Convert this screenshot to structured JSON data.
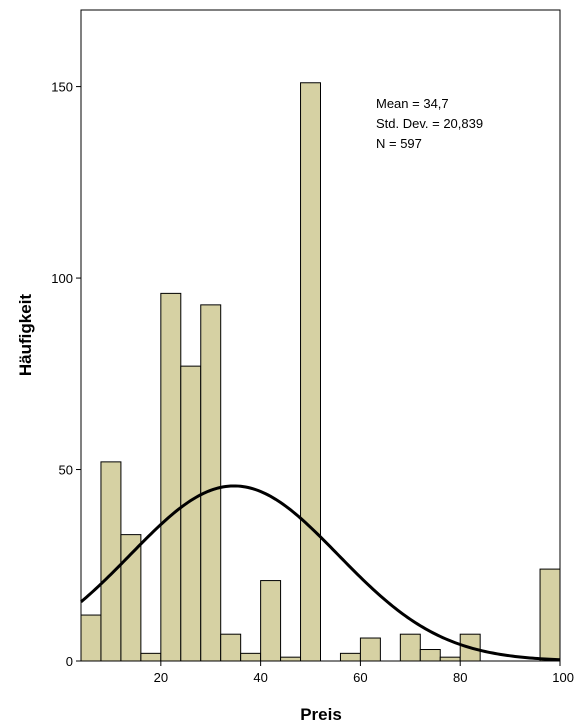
{
  "chart_data": {
    "type": "bar",
    "subtype": "histogram",
    "xlabel": "Preis",
    "ylabel": "Häufigkeit",
    "xlim": [
      4,
      100
    ],
    "ylim": [
      0,
      170
    ],
    "xticks": [
      20,
      40,
      60,
      80,
      100
    ],
    "yticks": [
      0,
      50,
      100,
      150
    ],
    "bin_width": 4,
    "bins": [
      {
        "start": 4,
        "end": 8,
        "count": 12
      },
      {
        "start": 8,
        "end": 12,
        "count": 52
      },
      {
        "start": 12,
        "end": 16,
        "count": 33
      },
      {
        "start": 16,
        "end": 20,
        "count": 2
      },
      {
        "start": 20,
        "end": 24,
        "count": 96
      },
      {
        "start": 24,
        "end": 28,
        "count": 77
      },
      {
        "start": 28,
        "end": 32,
        "count": 93
      },
      {
        "start": 32,
        "end": 36,
        "count": 7
      },
      {
        "start": 36,
        "end": 40,
        "count": 2
      },
      {
        "start": 40,
        "end": 44,
        "count": 21
      },
      {
        "start": 44,
        "end": 48,
        "count": 1
      },
      {
        "start": 48,
        "end": 52,
        "count": 151
      },
      {
        "start": 52,
        "end": 56,
        "count": 0
      },
      {
        "start": 56,
        "end": 60,
        "count": 2
      },
      {
        "start": 60,
        "end": 64,
        "count": 6
      },
      {
        "start": 64,
        "end": 68,
        "count": 0
      },
      {
        "start": 68,
        "end": 72,
        "count": 7
      },
      {
        "start": 72,
        "end": 76,
        "count": 3
      },
      {
        "start": 76,
        "end": 80,
        "count": 1
      },
      {
        "start": 80,
        "end": 84,
        "count": 7
      },
      {
        "start": 84,
        "end": 88,
        "count": 0
      },
      {
        "start": 88,
        "end": 92,
        "count": 0
      },
      {
        "start": 92,
        "end": 96,
        "count": 0
      },
      {
        "start": 96,
        "end": 100,
        "count": 24
      }
    ],
    "normal_curve": {
      "mean": 34.7,
      "std_dev": 20.839,
      "n": 597
    },
    "stats_lines": [
      "Mean = 34,7",
      "Std. Dev. = 20,839",
      "N = 597"
    ],
    "stats_placement": "top-right",
    "grid": false,
    "bar_fill": "#d6d1a3",
    "bar_stroke": "#000000",
    "curve_color": "#000000"
  }
}
